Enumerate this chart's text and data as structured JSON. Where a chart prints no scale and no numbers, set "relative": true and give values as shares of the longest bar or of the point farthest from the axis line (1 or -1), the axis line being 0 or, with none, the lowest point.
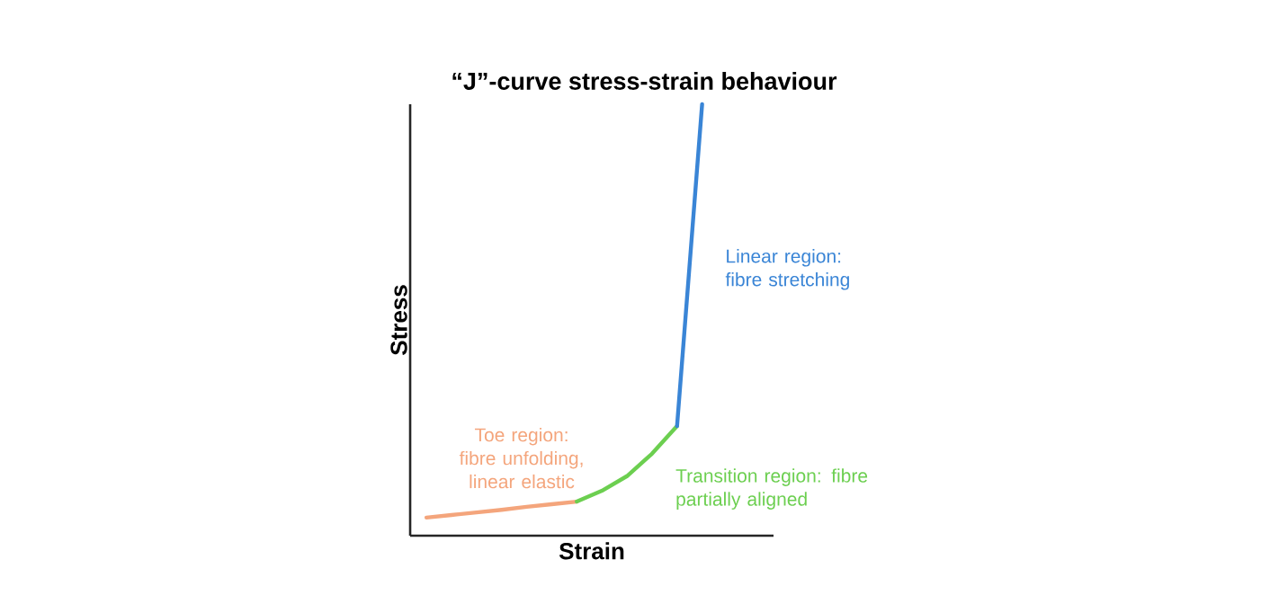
{
  "chart_data": {
    "type": "line",
    "title": "“J”-curve stress-strain behaviour",
    "xlabel": "Strain",
    "ylabel": "Stress",
    "relative": true,
    "tick_labels": false,
    "categories": [
      null,
      null,
      null,
      null,
      null,
      null,
      null,
      null,
      null,
      null,
      null,
      null
    ],
    "series": [
      {
        "name": "Toe region: fibre unfolding, linear elastic",
        "color": "#f4a57c",
        "values": [
          0.042,
          0.048,
          0.054,
          0.06,
          0.067,
          0.073,
          0.079,
          null,
          null,
          null,
          null,
          null
        ]
      },
      {
        "name": "Transition region: fibre partially aligned",
        "color": "#6ccf50",
        "values": [
          null,
          null,
          null,
          null,
          null,
          null,
          0.079,
          0.104,
          0.138,
          0.19,
          0.254,
          null
        ]
      },
      {
        "name": "Linear region: fibre stretching",
        "color": "#3a85d6",
        "values": [
          null,
          null,
          null,
          null,
          null,
          null,
          null,
          null,
          null,
          null,
          0.254,
          1.0
        ]
      }
    ]
  }
}
